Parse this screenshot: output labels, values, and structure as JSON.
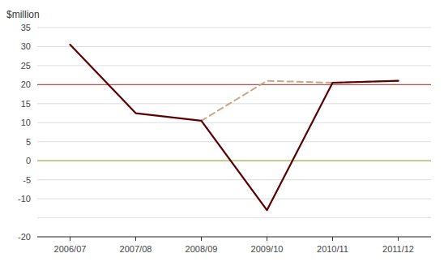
{
  "chart_data": {
    "type": "line",
    "y_label": "$million",
    "categories": [
      "2006/07",
      "2007/08",
      "2008/09",
      "2009/10",
      "2010/11",
      "2011/12"
    ],
    "series": [
      {
        "color": "#5B0000",
        "line_style": "solid",
        "values": [
          30.5,
          12.5,
          10.5,
          -13.0,
          20.5,
          21.0
        ]
      },
      {
        "color": "#C4A882",
        "line_style": "dashed",
        "values": [
          null,
          null,
          10.5,
          21.0,
          20.5,
          21.0
        ]
      }
    ],
    "reference_lines": [
      {
        "value": 20.0,
        "color": "#C0504D"
      },
      {
        "value": 0.0,
        "color": "#9BBB59"
      }
    ],
    "ylim": [
      -20,
      35
    ],
    "yticks": [
      -20,
      {
        "value": -15,
        "label": null
      },
      -10,
      -5,
      0,
      5,
      10,
      15,
      20,
      25,
      30,
      35
    ],
    "grid": true
  }
}
